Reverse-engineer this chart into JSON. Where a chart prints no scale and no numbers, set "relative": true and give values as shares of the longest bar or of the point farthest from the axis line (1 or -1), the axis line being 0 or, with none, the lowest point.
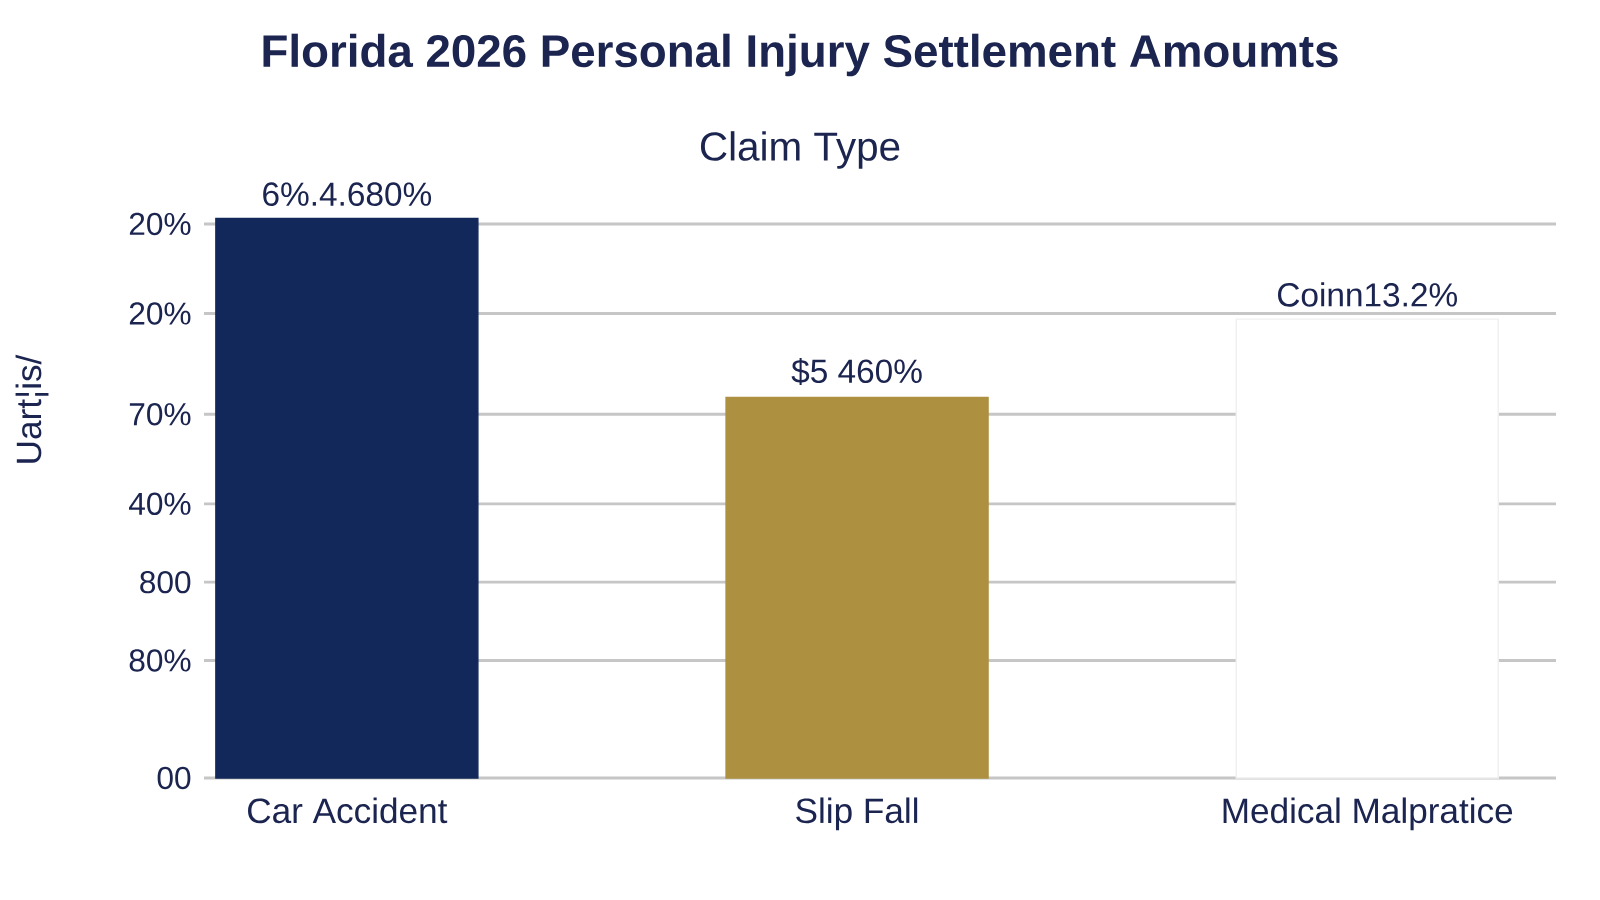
{
  "chart_data": {
    "type": "bar",
    "title": "Florida 2026 Personal Injury Settlement Amoumts",
    "subtitle": "Claim Type",
    "ylabel": "Uart¦is/",
    "categories": [
      "Car Accident",
      "Slip Fall",
      "Medical Malpratice"
    ],
    "values": [
      1.0,
      0.68,
      0.82
    ],
    "colors": [
      "#13285a",
      "#ad9140",
      "#ffffff"
    ],
    "relative": true,
    "annotations": [
      "00",
      "80%",
      "800",
      "40%",
      "70%",
      "20%",
      "20%",
      {
        "text": "6%.4.680%",
        "x": "Car Accident",
        "y": 1.0
      },
      {
        "text": "$5 460%",
        "x": "Slip Fall",
        "y": 0.68
      },
      {
        "text": "Coinn13.2%",
        "x": "Medical Malpratice",
        "y": 0.82
      }
    ],
    "grid": "y"
  }
}
